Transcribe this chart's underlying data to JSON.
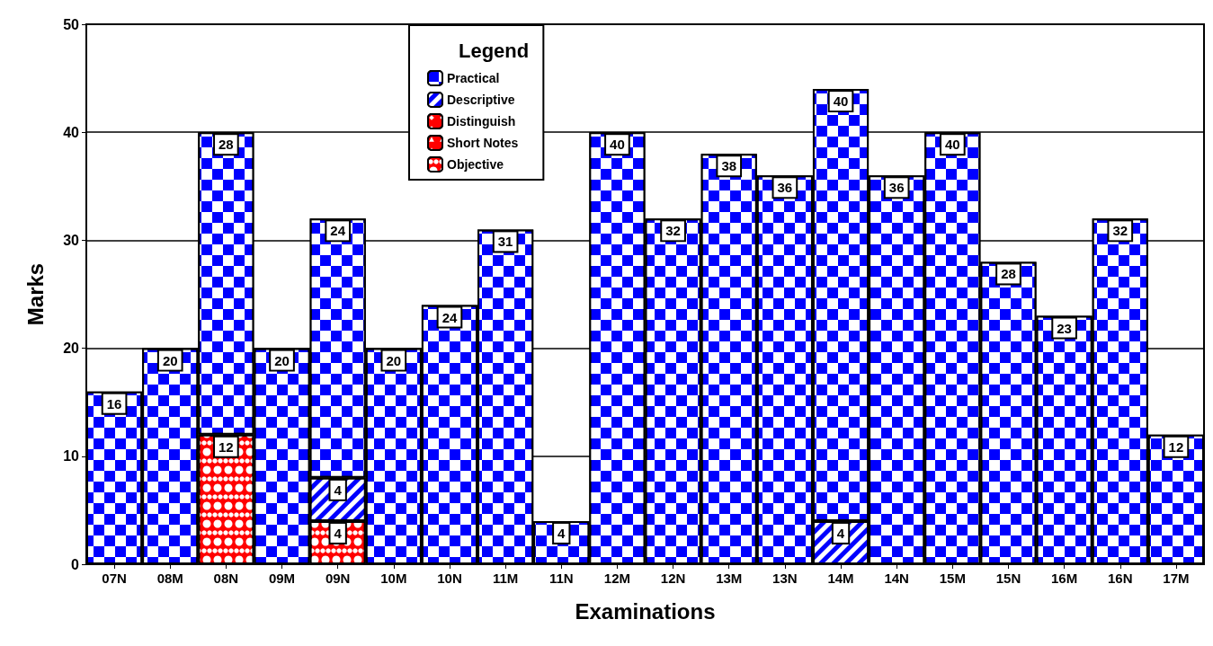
{
  "chart_data": {
    "type": "bar",
    "xlabel": "Examinations",
    "ylabel": "Marks",
    "legend_title": "Legend",
    "categories": [
      "07N",
      "08M",
      "08N",
      "09M",
      "09N",
      "10M",
      "10N",
      "11M",
      "11N",
      "12M",
      "12N",
      "13M",
      "13N",
      "14M",
      "14N",
      "15M",
      "15N",
      "16M",
      "16N",
      "17M"
    ],
    "stacked": true,
    "data_labels": true,
    "grid": "y",
    "legend": "top",
    "ylim": [
      0,
      50
    ],
    "yticks": [
      0,
      10,
      20,
      30,
      40,
      50
    ],
    "series": [
      {
        "name": "Objective",
        "color": "#ff0000",
        "values": [
          null,
          null,
          12,
          null,
          4,
          null,
          null,
          null,
          null,
          null,
          null,
          null,
          null,
          null,
          null,
          null,
          null,
          null,
          null,
          null
        ]
      },
      {
        "name": "Short Notes",
        "color": "#ff0000",
        "values": [
          null,
          null,
          null,
          null,
          null,
          null,
          null,
          null,
          null,
          null,
          null,
          null,
          null,
          null,
          null,
          null,
          null,
          null,
          null,
          null
        ]
      },
      {
        "name": "Distinguish",
        "color": "#ff0000",
        "values": [
          null,
          null,
          null,
          null,
          null,
          null,
          null,
          null,
          null,
          null,
          null,
          null,
          null,
          null,
          null,
          null,
          null,
          null,
          null,
          null
        ]
      },
      {
        "name": "Descriptive",
        "color": "#0000ff",
        "values": [
          null,
          null,
          null,
          null,
          4,
          null,
          null,
          null,
          null,
          null,
          null,
          null,
          null,
          4,
          null,
          null,
          null,
          null,
          null,
          null
        ]
      },
      {
        "name": "Practical",
        "color": "#0000ff",
        "values": [
          16,
          20,
          28,
          20,
          24,
          20,
          24,
          31,
          4,
          40,
          32,
          38,
          36,
          40,
          36,
          40,
          28,
          23,
          32,
          12
        ]
      }
    ]
  }
}
